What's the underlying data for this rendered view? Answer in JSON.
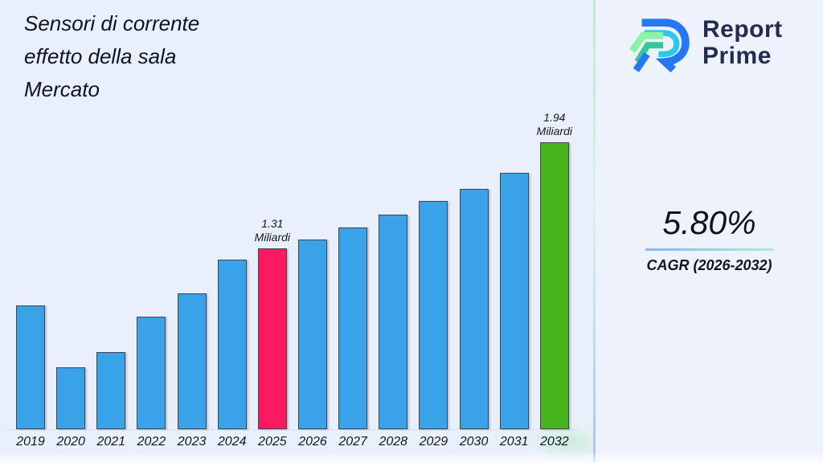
{
  "title": {
    "lines": [
      "Sensori di corrente",
      "effetto della sala",
      "Mercato"
    ]
  },
  "logo": {
    "brand_line1": "Report",
    "brand_line2": "Prime",
    "mark_colors": {
      "blue": "#2577f3",
      "cyan": "#2bc7f1",
      "light_green": "#8cf2a5",
      "teal": "#36c89b"
    }
  },
  "stats": {
    "cagr_value": "5.80%",
    "cagr_label": "CAGR (2026-2032)"
  },
  "chart_data": {
    "type": "bar",
    "title": "Sensori di corrente effetto della sala Mercato",
    "unit": "Miliardi",
    "categories": [
      "2019",
      "2020",
      "2021",
      "2022",
      "2023",
      "2024",
      "2025",
      "2026",
      "2027",
      "2028",
      "2029",
      "2030",
      "2031",
      "2032"
    ],
    "values": [
      0.97,
      0.6,
      0.69,
      0.9,
      1.04,
      1.24,
      1.31,
      1.36,
      1.43,
      1.51,
      1.59,
      1.66,
      1.76,
      1.94
    ],
    "ylim": [
      0.23,
      1.94
    ],
    "grid": false,
    "legend": false,
    "bar_colors": {
      "default": "#3aa2e9",
      "2025": "#fa1a61",
      "2032": "#47b41e"
    },
    "annotations": [
      {
        "category": "2025",
        "value_label": "1.31",
        "unit_label": "Miliardi"
      },
      {
        "category": "2032",
        "value_label": "1.94",
        "unit_label": "Miliardi"
      }
    ]
  },
  "theme": {
    "background_left": "#eaf0fb",
    "background_right": "#eef2fd",
    "divider_top": "#b6edc9",
    "divider_bottom": "#a9c6f3",
    "text_dark": "#0d1420",
    "brand_navy": "#232c50"
  }
}
